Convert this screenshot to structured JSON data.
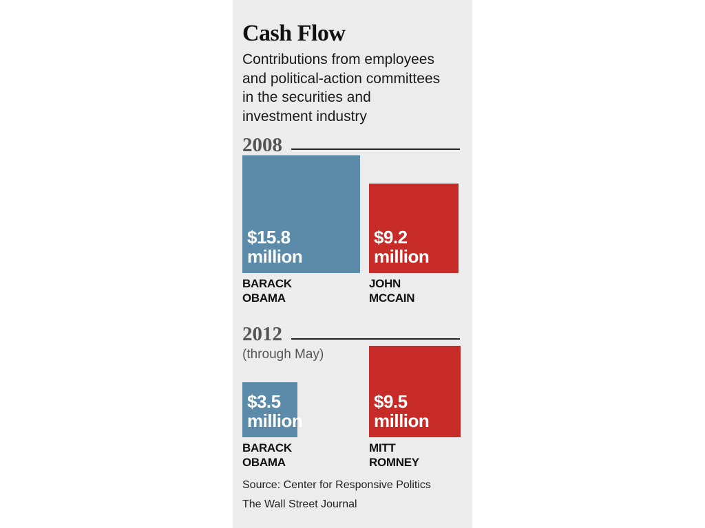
{
  "chart_data": [
    {
      "type": "bar",
      "title": "Cash Flow",
      "subtitle": [
        "Contributions from employees",
        "and political-action committees",
        "in the securities and",
        "investment industry"
      ],
      "group_label": "2008",
      "group_note": "",
      "unit": "million",
      "categories": [
        "BARACK OBAMA",
        "JOHN MCCAIN"
      ],
      "values": [
        15.8,
        9.2
      ],
      "value_labels": [
        "$15.8",
        "$9.2"
      ],
      "name_lines": [
        [
          "BARACK",
          "OBAMA"
        ],
        [
          "JOHN",
          "MCCAIN"
        ]
      ],
      "colors": [
        "#5b8ba9",
        "#c72b27"
      ]
    },
    {
      "type": "bar",
      "group_label": "2012",
      "group_note": "(through May)",
      "unit": "million",
      "categories": [
        "BARACK OBAMA",
        "MITT ROMNEY"
      ],
      "values": [
        3.5,
        9.5
      ],
      "value_labels": [
        "$3.5",
        "$9.5"
      ],
      "name_lines": [
        [
          "BARACK",
          "OBAMA"
        ],
        [
          "MITT",
          "ROMNEY"
        ]
      ],
      "colors": [
        "#5b8ba9",
        "#c72b27"
      ]
    }
  ],
  "header": {
    "title": "Cash Flow",
    "subtitle_lines": [
      "Contributions from employees",
      "and political-action committees",
      "in the securities and",
      "investment industry"
    ]
  },
  "groups": [
    {
      "year": "2008",
      "note": ""
    },
    {
      "year": "2012",
      "note": "(through May)"
    }
  ],
  "footer": {
    "source": "Source: Center for Responsive Politics",
    "credit": "The Wall Street Journal"
  }
}
